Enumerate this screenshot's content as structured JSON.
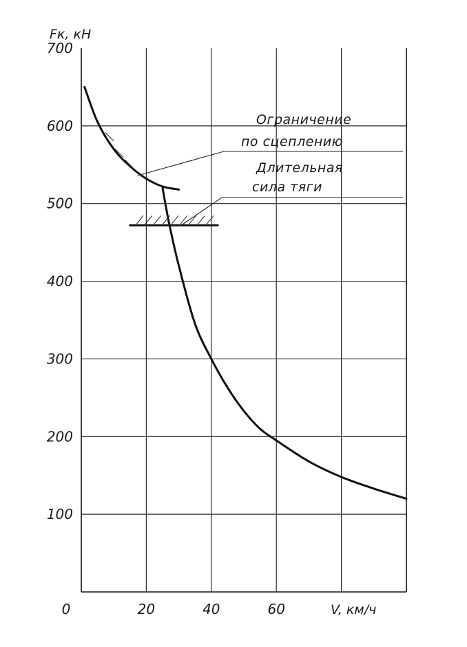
{
  "chart_data": {
    "type": "line",
    "title": "",
    "xlabel": "V, км/ч",
    "ylabel": "Fк, кН",
    "xlim": [
      0,
      100
    ],
    "ylim": [
      0,
      700
    ],
    "x_ticks": [
      "20",
      "40",
      "60"
    ],
    "y_ticks": [
      "100",
      "200",
      "300",
      "400",
      "500",
      "600",
      "700"
    ],
    "origin_label": "0",
    "grid": true,
    "series": [
      {
        "key": "adhesion",
        "x": [
          1,
          5,
          10,
          15,
          20,
          25,
          30
        ],
        "y": [
          650,
          605,
          570,
          548,
          532,
          522,
          518
        ]
      },
      {
        "key": "traction",
        "x": [
          25,
          27,
          30,
          35,
          40,
          45,
          50,
          55,
          60,
          70,
          80,
          90,
          100
        ],
        "y": [
          520,
          475,
          420,
          345,
          300,
          263,
          233,
          210,
          195,
          168,
          148,
          133,
          120
        ]
      },
      {
        "key": "continuous",
        "x": [
          15,
          42
        ],
        "y": [
          472,
          472
        ]
      }
    ],
    "annotations": [
      {
        "key": "adhesion",
        "lines": [
          "Ограничение",
          "по сцеплению"
        ]
      },
      {
        "key": "continuous",
        "lines": [
          "Длительная",
          "сила тяги"
        ]
      }
    ]
  }
}
